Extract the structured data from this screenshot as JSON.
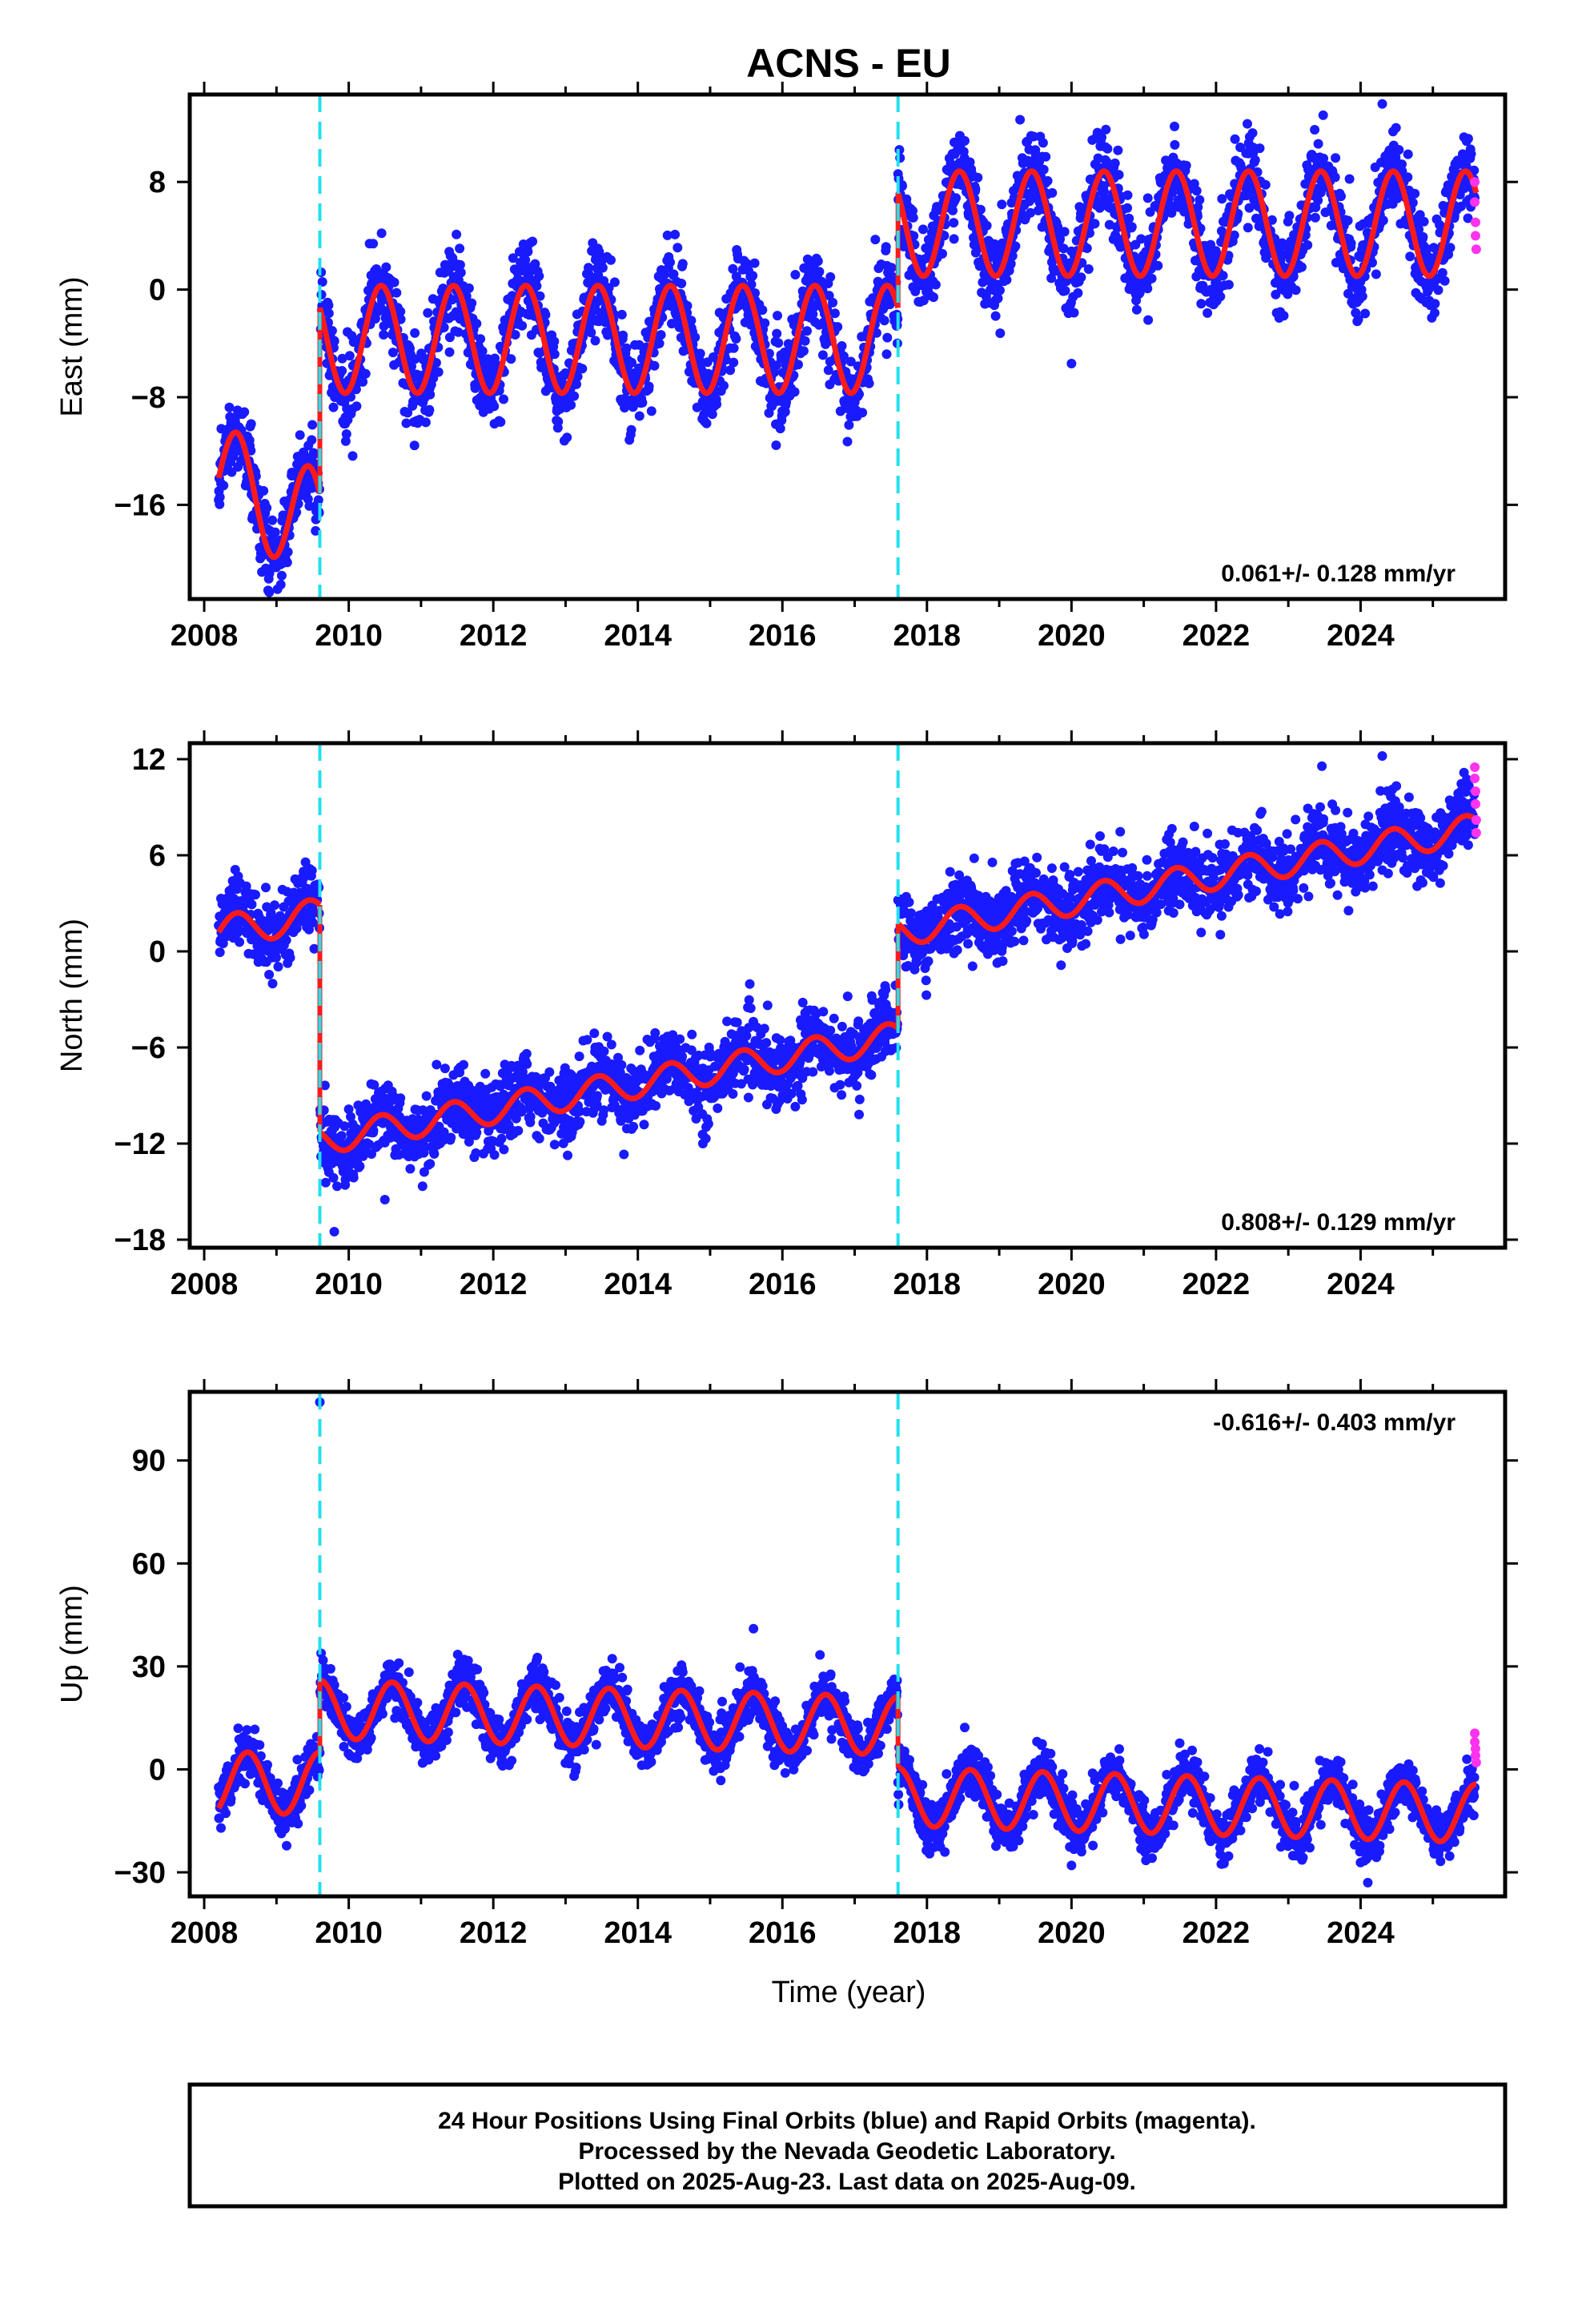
{
  "figure": {
    "title": "ACNS - EU",
    "xlabel": "Time (year)",
    "footer": [
      "24 Hour Positions Using Final Orbits (blue) and Rapid Orbits (magenta).",
      "Processed by the Nevada Geodetic Laboratory.",
      "Plotted on 2025-Aug-23. Last data on 2025-Aug-09."
    ]
  },
  "colors": {
    "final_orbits": "#1a1aff",
    "rapid_orbits": "#ff33ee",
    "model": "#ff1a1a",
    "breaks": "#22e0ee",
    "axes": "#000000"
  },
  "chart_data": [
    {
      "type": "scatter",
      "ylabel": "East (mm)",
      "xlim": [
        2007.8,
        2026.0
      ],
      "ylim": [
        -23,
        14.5
      ],
      "xticks": [
        2008,
        2010,
        2012,
        2014,
        2016,
        2018,
        2020,
        2022,
        2024
      ],
      "yticks": [
        -16,
        -8,
        0,
        8
      ],
      "rate_label": "0.061+/- 0.128 mm/yr",
      "rate_position": "bottom-right",
      "breaks": [
        2009.6,
        2017.6
      ],
      "model": {
        "segments": [
          {
            "from": 2008.2,
            "to": 2009.6,
            "offset": -14,
            "trend": -2.5,
            "amp": 4,
            "phase": 2008.45
          },
          {
            "from": 2009.6,
            "to": 2017.6,
            "offset": -3.7,
            "trend": 0,
            "amp": 4,
            "phase": 2010.45
          },
          {
            "from": 2017.6,
            "to": 2025.6,
            "offset": 4.9,
            "trend": 0,
            "amp": 3.9,
            "phase": 2018.45
          }
        ],
        "scatter_std": 1.5
      },
      "rapid_orbit_points": [
        [
          2025.58,
          8.0
        ],
        [
          2025.58,
          6.5
        ],
        [
          2025.59,
          5.0
        ],
        [
          2025.59,
          4.0
        ],
        [
          2025.6,
          3.0
        ]
      ],
      "outliers": [
        [
          2020.0,
          -5.5
        ],
        [
          2024.3,
          13.8
        ],
        [
          2016.9,
          -11.3
        ],
        [
          2008.9,
          -22.5
        ]
      ]
    },
    {
      "type": "scatter",
      "ylabel": "North (mm)",
      "xlim": [
        2007.8,
        2026.0
      ],
      "ylim": [
        -18.5,
        13
      ],
      "xticks": [
        2008,
        2010,
        2012,
        2014,
        2016,
        2018,
        2020,
        2022,
        2024
      ],
      "yticks": [
        -18,
        -12,
        -6,
        0,
        6,
        12
      ],
      "rate_label": "0.808+/- 0.129 mm/yr",
      "rate_position": "bottom-right",
      "breaks": [
        2009.6,
        2017.6
      ],
      "model": {
        "segments": [
          {
            "from": 2008.2,
            "to": 2009.6,
            "offset": 1.2,
            "trend": 0.8,
            "amp": 1,
            "phase": 2008.45
          },
          {
            "from": 2009.6,
            "to": 2017.6,
            "offset": -11.8,
            "trend": 0.81,
            "amp": 0.9,
            "phase": 2010.45
          },
          {
            "from": 2017.6,
            "to": 2025.6,
            "offset": 1.2,
            "trend": 0.81,
            "amp": 0.9,
            "phase": 2018.45
          }
        ],
        "scatter_std": 1.1
      },
      "rapid_orbit_points": [
        [
          2025.58,
          11.5
        ],
        [
          2025.58,
          10.8
        ],
        [
          2025.59,
          10.0
        ],
        [
          2025.59,
          9.2
        ],
        [
          2025.6,
          8.2
        ],
        [
          2025.6,
          7.4
        ]
      ],
      "outliers": [
        [
          2009.8,
          -17.5
        ],
        [
          2014.9,
          -12.0
        ],
        [
          2024.3,
          12.2
        ],
        [
          2010.5,
          -15.5
        ]
      ]
    },
    {
      "type": "scatter",
      "ylabel": "Up (mm)",
      "xlim": [
        2007.8,
        2026.0
      ],
      "ylim": [
        -37,
        110
      ],
      "xticks": [
        2008,
        2010,
        2012,
        2014,
        2016,
        2018,
        2020,
        2022,
        2024
      ],
      "yticks": [
        -30,
        0,
        30,
        60,
        90
      ],
      "rate_label": "-0.616+/- 0.403 mm/yr",
      "rate_position": "top-right",
      "breaks": [
        2009.6,
        2017.6
      ],
      "model": {
        "segments": [
          {
            "from": 2008.2,
            "to": 2009.6,
            "offset": -4,
            "trend": 0,
            "amp": 9,
            "phase": 2008.6
          },
          {
            "from": 2009.6,
            "to": 2017.6,
            "offset": 17.5,
            "trend": -0.6,
            "amp": 8.5,
            "phase": 2010.6
          },
          {
            "from": 2017.6,
            "to": 2025.6,
            "offset": -8,
            "trend": -0.6,
            "amp": 8.5,
            "phase": 2018.6
          }
        ],
        "scatter_std": 3.5
      },
      "rapid_orbit_points": [
        [
          2025.58,
          10.5
        ],
        [
          2025.58,
          8.0
        ],
        [
          2025.59,
          6.0
        ],
        [
          2025.59,
          4.0
        ],
        [
          2025.6,
          2.0
        ]
      ],
      "outliers": [
        [
          2009.6,
          107
        ],
        [
          2015.6,
          41
        ],
        [
          2024.1,
          -33
        ],
        [
          2020.0,
          -28
        ]
      ]
    }
  ]
}
